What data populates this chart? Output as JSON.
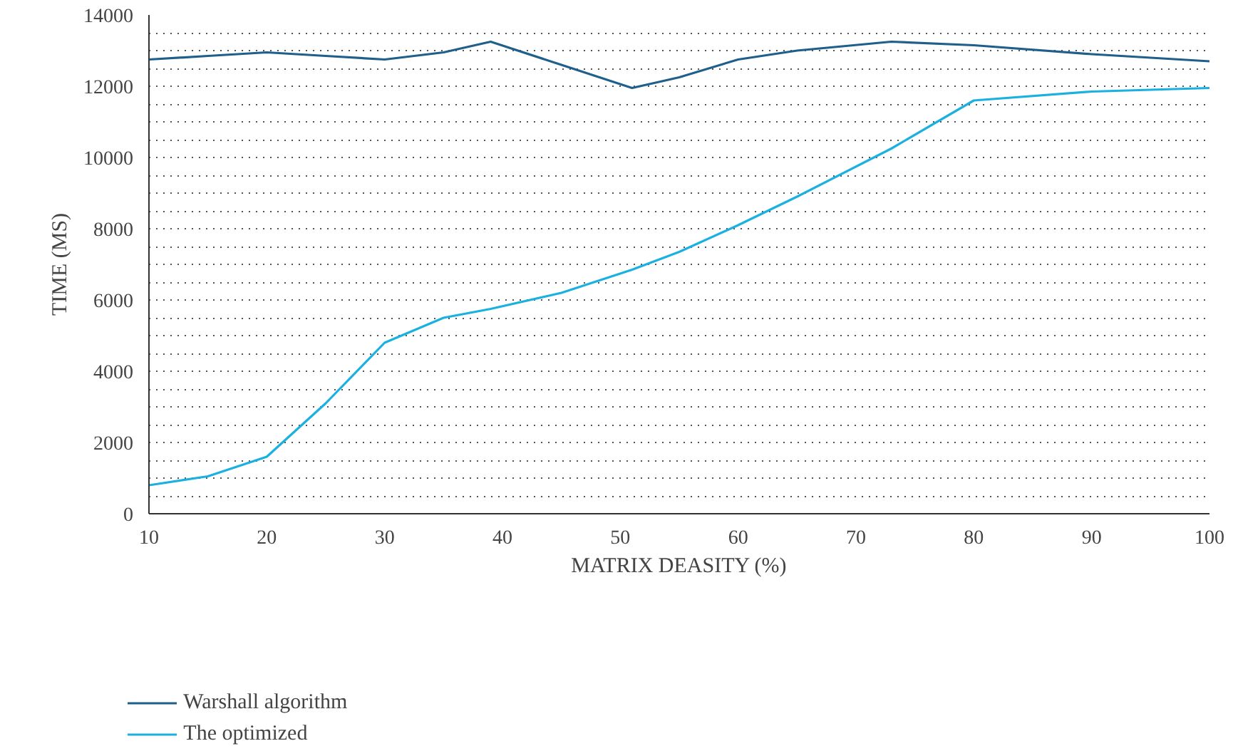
{
  "chart_data": {
    "type": "line",
    "xlabel": "MATRIX DEASITY (%)",
    "ylabel": "TIME (MS)",
    "x": [
      10,
      15,
      20,
      25,
      30,
      35,
      39,
      45,
      51,
      55,
      60,
      65,
      73,
      80,
      90,
      100
    ],
    "series": [
      {
        "name": "Warshall algorithm",
        "color": "#1f5f8b",
        "values": [
          12750,
          12850,
          12950,
          12850,
          12750,
          12950,
          13250,
          12600,
          11950,
          12250,
          12750,
          13000,
          13250,
          13150,
          12900,
          12700
        ]
      },
      {
        "name": "The optimized",
        "color": "#1ab0e0",
        "values": [
          800,
          1050,
          1600,
          3100,
          4800,
          5500,
          5750,
          6200,
          6850,
          7350,
          8100,
          8900,
          10250,
          11600,
          11850,
          11950
        ]
      }
    ],
    "xlim": [
      10,
      100
    ],
    "xticks": [
      10,
      20,
      30,
      40,
      50,
      60,
      70,
      80,
      90,
      100
    ],
    "ylim": [
      0,
      14000
    ],
    "yticks": [
      0,
      2000,
      4000,
      6000,
      8000,
      10000,
      12000,
      14000
    ],
    "grid": "y",
    "legend": "bottom",
    "marker": "none",
    "line_style": "solid"
  }
}
